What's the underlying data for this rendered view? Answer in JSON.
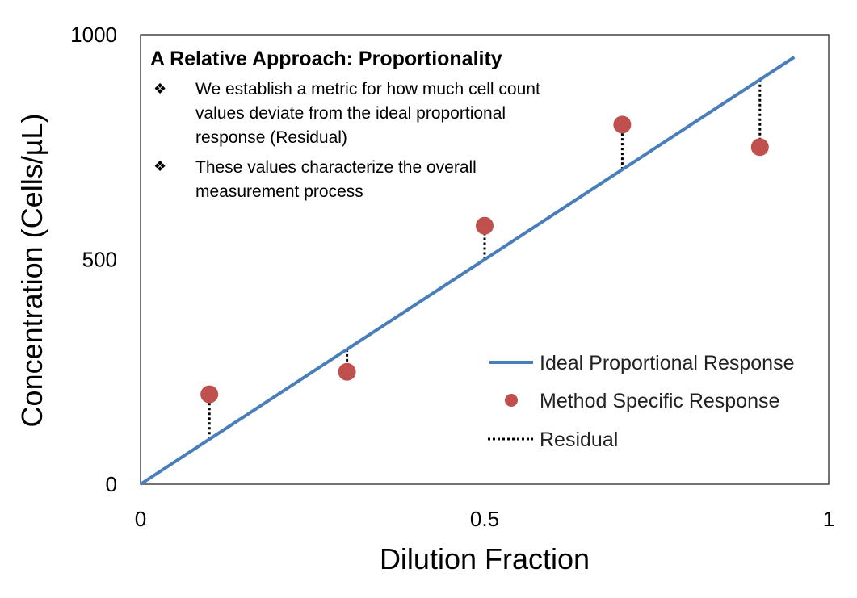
{
  "colors": {
    "ideal_line": "#4a7ebb",
    "method_point": "#c0504d",
    "residual": "#000000",
    "frame": "#444444"
  },
  "annotation": {
    "title": "A Relative Approach:  Proportionality",
    "bullet_symbol": "❖",
    "bullets": [
      [
        "We establish a metric for how much cell count",
        "values deviate from the ideal proportional",
        "response (Residual)"
      ],
      [
        "These values characterize the overall",
        "measurement process"
      ]
    ]
  },
  "chart_data": {
    "type": "scatter",
    "xlabel": "Dilution Fraction",
    "ylabel": "Concentration (Cells/µL)",
    "xlim": [
      0,
      1
    ],
    "ylim": [
      0,
      1000
    ],
    "xticks": [
      0,
      0.5,
      1
    ],
    "xtick_labels": [
      "0",
      "0.5",
      "1"
    ],
    "yticks": [
      0,
      500,
      1000
    ],
    "ytick_labels": [
      "0",
      "500",
      "1000"
    ],
    "grid": false,
    "legend_position": "bottom-right",
    "series": [
      {
        "name": "Ideal Proportional Response",
        "kind": "line",
        "x": [
          0,
          0.95
        ],
        "y": [
          0,
          950
        ]
      },
      {
        "name": "Method Specific Response",
        "kind": "scatter",
        "x": [
          0.1,
          0.3,
          0.5,
          0.7,
          0.9
        ],
        "y": [
          200,
          250,
          575,
          800,
          750
        ]
      },
      {
        "name": "Residual",
        "kind": "residual",
        "x": [
          0.1,
          0.3,
          0.5,
          0.7,
          0.9
        ],
        "y_from": [
          100,
          300,
          500,
          700,
          900
        ],
        "y_to": [
          200,
          250,
          575,
          800,
          750
        ]
      }
    ]
  }
}
